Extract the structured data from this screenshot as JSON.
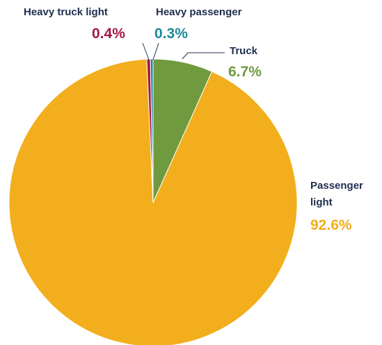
{
  "chart_data": {
    "type": "pie",
    "categories": [
      "Truck",
      "Passenger light",
      "Heavy truck light",
      "Heavy passenger"
    ],
    "values": [
      6.7,
      92.6,
      0.4,
      0.3
    ],
    "value_labels": [
      "6.7%",
      "92.6%",
      "0.4%",
      "0.3%"
    ],
    "colors": [
      "#6f9a3e",
      "#f2ae1c",
      "#a3174a",
      "#1a8a9a"
    ]
  }
}
